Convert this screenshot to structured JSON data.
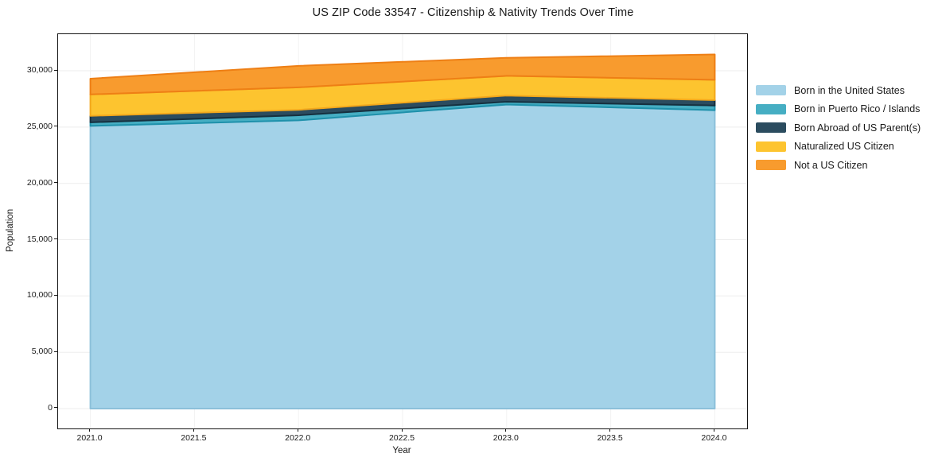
{
  "title": "US ZIP Code 33547 - Citizenship & Nativity Trends Over Time",
  "chart_data": {
    "type": "area",
    "stacked": true,
    "title": "US ZIP Code 33547 - Citizenship & Nativity Trends Over Time",
    "xlabel": "Year",
    "ylabel": "Population",
    "x": [
      2021,
      2022,
      2023,
      2024
    ],
    "series": [
      {
        "name": "Born in the United States",
        "values": [
          25100,
          25600,
          27000,
          26500
        ],
        "fill": "#a3d2e8",
        "edge": "#8cc0da"
      },
      {
        "name": "Born in Puerto Rico / Islands",
        "values": [
          320,
          450,
          250,
          420
        ],
        "fill": "#46aec3",
        "edge": "#1f91ab"
      },
      {
        "name": "Born Abroad of US Parent(s)",
        "values": [
          580,
          480,
          550,
          480
        ],
        "fill": "#2b4c5f",
        "edge": "#16303f"
      },
      {
        "name": "Naturalized US Citizen",
        "values": [
          1900,
          2000,
          1750,
          1800
        ],
        "fill": "#fdc42f",
        "edge": "#f3a81c"
      },
      {
        "name": "Not a US Citizen",
        "values": [
          1400,
          1900,
          1600,
          2250
        ],
        "fill": "#f89b2e",
        "edge": "#ee7f15"
      }
    ],
    "totals": [
      29300,
      30430,
      31150,
      31450
    ],
    "xlim": [
      2020.845,
      2024.155
    ],
    "ylim": [
      -1765,
      33250
    ],
    "xticks": {
      "values": [
        2021.0,
        2021.5,
        2022.0,
        2022.5,
        2023.0,
        2023.5,
        2024.0
      ],
      "labels": [
        "2021.0",
        "2021.5",
        "2022.0",
        "2022.5",
        "2023.0",
        "2023.5",
        "2024.0"
      ]
    },
    "yticks": {
      "values": [
        0,
        5000,
        10000,
        15000,
        20000,
        25000,
        30000
      ],
      "labels": [
        "0",
        "5,000",
        "10,000",
        "15,000",
        "20,000",
        "25,000",
        "30,000"
      ]
    },
    "grid": true,
    "legend_position": "right"
  }
}
